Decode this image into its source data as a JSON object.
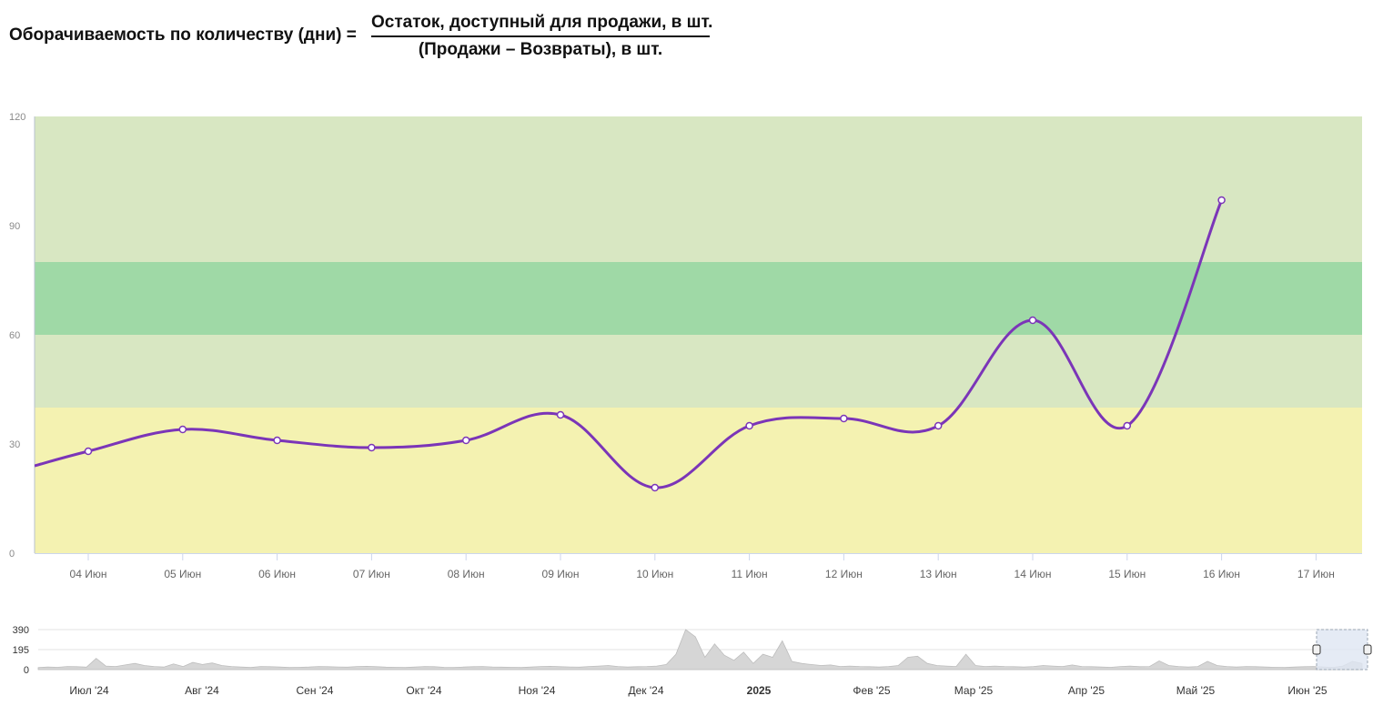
{
  "formula": {
    "lhs": "Оборачиваемость по количеству (дни) =",
    "numerator": "Остаток, доступный для продажи, в шт.",
    "denominator": "(Продажи – Возвраты), в шт."
  },
  "colors": {
    "line": "#7b35b8",
    "band_yellow": "#f4f2b1",
    "band_light_green": "#d8e7c2",
    "band_green": "#9fd9a6",
    "navigator_area": "#d6d6d6",
    "navigator_window": "#dfe6f2"
  },
  "chart_data": [
    {
      "type": "line",
      "ylim": [
        0,
        120
      ],
      "yticks": [
        0,
        30,
        60,
        90,
        120
      ],
      "grid": false,
      "x": [
        "04 Июн",
        "05 Июн",
        "06 Июн",
        "07 Июн",
        "08 Июн",
        "09 Июн",
        "10 Июн",
        "11 Июн",
        "12 Июн",
        "13 Июн",
        "14 Июн",
        "15 Июн",
        "16 Июн",
        "17 Июн"
      ],
      "series": [
        {
          "values": [
            28,
            34,
            31,
            29,
            31,
            38,
            18,
            35,
            37,
            35,
            64,
            35,
            97,
            null
          ]
        }
      ],
      "bands": [
        {
          "from": 0,
          "to": 40,
          "color": "#f4f2b1"
        },
        {
          "from": 40,
          "to": 60,
          "color": "#d8e7c2"
        },
        {
          "from": 60,
          "to": 80,
          "color": "#9fd9a6"
        },
        {
          "from": 80,
          "to": 120,
          "color": "#d8e7c2"
        }
      ]
    },
    {
      "type": "area",
      "role": "navigator",
      "yticks": [
        0,
        195,
        390
      ],
      "ylim": [
        0,
        390
      ],
      "x_labels": [
        "Июл '24",
        "Авг '24",
        "Сен '24",
        "Окт '24",
        "Ноя '24",
        "Дек '24",
        "2025",
        "Фев '25",
        "Мар '25",
        "Апр '25",
        "Май '25",
        "Июн '25"
      ],
      "values": [
        20,
        25,
        22,
        30,
        28,
        24,
        110,
        35,
        30,
        45,
        60,
        40,
        30,
        25,
        55,
        30,
        70,
        50,
        65,
        40,
        30,
        25,
        20,
        30,
        28,
        25,
        20,
        22,
        25,
        30,
        28,
        26,
        24,
        30,
        32,
        28,
        24,
        22,
        20,
        25,
        30,
        28,
        22,
        20,
        25,
        28,
        30,
        26,
        24,
        22,
        20,
        25,
        30,
        32,
        28,
        26,
        24,
        30,
        35,
        40,
        30,
        25,
        28,
        30,
        35,
        50,
        150,
        390,
        320,
        120,
        250,
        140,
        90,
        170,
        60,
        150,
        120,
        280,
        80,
        60,
        50,
        40,
        45,
        30,
        35,
        30,
        28,
        25,
        30,
        40,
        120,
        130,
        60,
        40,
        35,
        30,
        150,
        40,
        30,
        35,
        30,
        28,
        25,
        30,
        40,
        35,
        30,
        45,
        30,
        28,
        25,
        22,
        30,
        35,
        28,
        30,
        85,
        40,
        30,
        25,
        30,
        80,
        40,
        30,
        25,
        30,
        28,
        25,
        22,
        20,
        25,
        28,
        30,
        25,
        20,
        35,
        80,
        60
      ]
    }
  ]
}
